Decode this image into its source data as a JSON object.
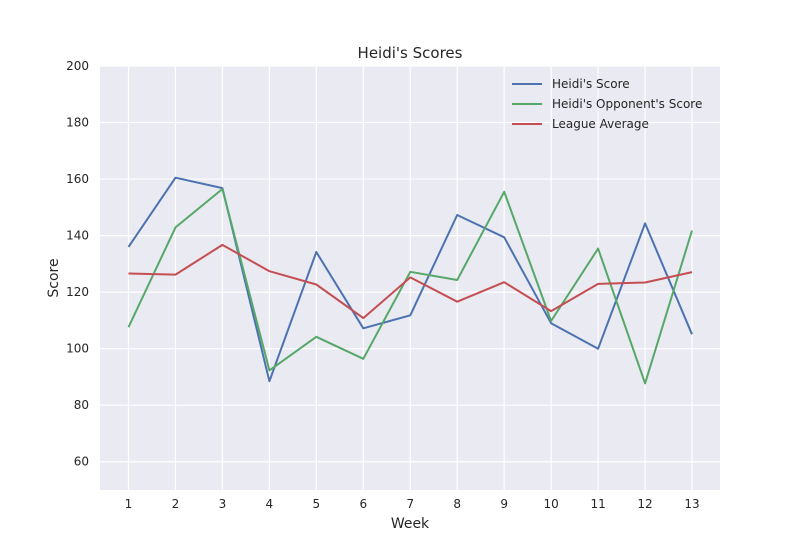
{
  "chart_data": {
    "type": "line",
    "title": "Heidi's Scores",
    "xlabel": "Week",
    "ylabel": "Score",
    "x": [
      1,
      2,
      3,
      4,
      5,
      6,
      7,
      8,
      9,
      10,
      11,
      12,
      13
    ],
    "ylim": [
      50,
      200
    ],
    "yticks": [
      60,
      80,
      100,
      120,
      140,
      160,
      180,
      200
    ],
    "grid": true,
    "legend_position": "top-right",
    "series": [
      {
        "name": "Heidi's Score",
        "color": "#4c72b0",
        "values": [
          136,
          160.5,
          156.8,
          88.5,
          134.2,
          107.2,
          111.8,
          147.3,
          139.4,
          109,
          100,
          144.3,
          105.1
        ]
      },
      {
        "name": "Heidi's Opponent's Score",
        "color": "#55a868",
        "values": [
          107.6,
          142.9,
          156.5,
          92.3,
          104.2,
          96.4,
          127.2,
          124.3,
          155.5,
          109.8,
          135.4,
          87.7,
          141.8
        ]
      },
      {
        "name": "League Average",
        "color": "#c44e52",
        "values": [
          126.6,
          126.2,
          136.7,
          127.4,
          122.7,
          110.8,
          125.2,
          116.6,
          123.5,
          113.3,
          122.9,
          123.4,
          127.1
        ]
      }
    ]
  }
}
